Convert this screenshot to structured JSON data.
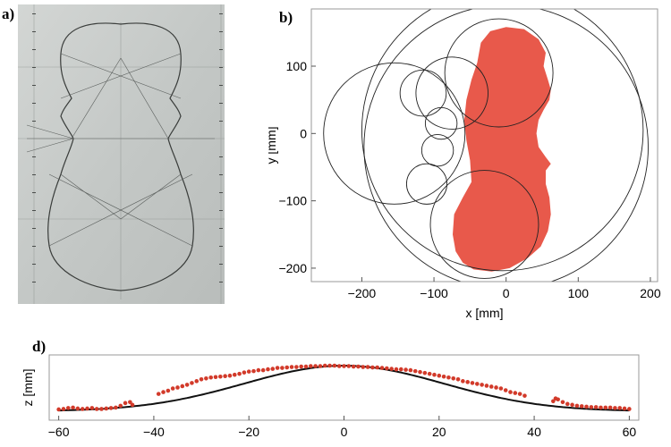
{
  "panels": {
    "a": {
      "label": "a)"
    },
    "b": {
      "label": "b)"
    },
    "d": {
      "label": "d)"
    }
  },
  "colors": {
    "fill": "#e8594b",
    "points": "#d23a2a",
    "curve": "#111111",
    "frame": "#9a9a9a",
    "photo_bg": "#c9ccca"
  },
  "chart_data": [
    {
      "type": "area",
      "panel": "b",
      "xlabel": "x [mm]",
      "ylabel": "y [mm]",
      "xlim": [
        -270,
        210
      ],
      "ylim": [
        -220,
        185
      ],
      "xticks": [
        -200,
        -100,
        0,
        100,
        200
      ],
      "xtick_labels": [
        "−200",
        "−100",
        "0",
        "100",
        "200"
      ],
      "yticks": [
        -200,
        -100,
        0,
        100
      ],
      "ytick_labels": [
        "−200",
        "−100",
        "0",
        "100"
      ],
      "outline": [
        [
          -40,
          105
        ],
        [
          -35,
          135
        ],
        [
          -22,
          152
        ],
        [
          0,
          158
        ],
        [
          25,
          155
        ],
        [
          45,
          140
        ],
        [
          55,
          120
        ],
        [
          52,
          100
        ],
        [
          58,
          80
        ],
        [
          62,
          65
        ],
        [
          60,
          50
        ],
        [
          52,
          35
        ],
        [
          45,
          20
        ],
        [
          42,
          0
        ],
        [
          45,
          -20
        ],
        [
          55,
          -35
        ],
        [
          62,
          -45
        ],
        [
          55,
          -55
        ],
        [
          55,
          -75
        ],
        [
          60,
          -95
        ],
        [
          62,
          -120
        ],
        [
          58,
          -145
        ],
        [
          48,
          -168
        ],
        [
          30,
          -185
        ],
        [
          5,
          -200
        ],
        [
          -20,
          -205
        ],
        [
          -45,
          -202
        ],
        [
          -60,
          -192
        ],
        [
          -70,
          -175
        ],
        [
          -74,
          -150
        ],
        [
          -72,
          -120
        ],
        [
          -60,
          -95
        ],
        [
          -48,
          -72
        ],
        [
          -50,
          -40
        ],
        [
          -55,
          -10
        ],
        [
          -58,
          20
        ],
        [
          -55,
          50
        ],
        [
          -48,
          80
        ],
        [
          -40,
          105
        ]
      ],
      "circles": [
        {
          "cx": 0,
          "cy": -20,
          "r": 197
        },
        {
          "cx": -5,
          "cy": 5,
          "r": 195
        },
        {
          "cx": -155,
          "cy": 0,
          "r": 98
        },
        {
          "cx": -10,
          "cy": 90,
          "r": 75
        },
        {
          "cx": -30,
          "cy": -135,
          "r": 75
        },
        {
          "cx": -75,
          "cy": 60,
          "r": 50
        },
        {
          "cx": -115,
          "cy": 60,
          "r": 32
        },
        {
          "cx": -90,
          "cy": 15,
          "r": 22
        },
        {
          "cx": -95,
          "cy": -25,
          "r": 22
        },
        {
          "cx": -110,
          "cy": -75,
          "r": 28
        }
      ]
    },
    {
      "type": "scatter",
      "panel": "d",
      "ylabel": "z [mm]",
      "xlim": [
        -62,
        62
      ],
      "xticks": [
        -60,
        -40,
        -20,
        0,
        20,
        40,
        60
      ],
      "xtick_labels": [
        "−60",
        "−40",
        "−20",
        "0",
        "20",
        "40",
        "60"
      ],
      "fit_curve": {
        "type": "gaussian",
        "amplitude": 1,
        "sigma": 21
      },
      "points": [
        [
          -60,
          0.04
        ],
        [
          -59,
          0.05
        ],
        [
          -58,
          0.07
        ],
        [
          -57,
          0.08
        ],
        [
          -56,
          0.06
        ],
        [
          -55,
          0.05
        ],
        [
          -54,
          0.06
        ],
        [
          -53,
          0.07
        ],
        [
          -52,
          0.05
        ],
        [
          -51,
          0.05
        ],
        [
          -50,
          0.06
        ],
        [
          -49,
          0.07
        ],
        [
          -48,
          0.08
        ],
        [
          -47,
          0.12
        ],
        [
          -46,
          0.18
        ],
        [
          -45,
          0.2
        ],
        [
          -44.5,
          0.14
        ],
        [
          -39,
          0.38
        ],
        [
          -38,
          0.42
        ],
        [
          -37,
          0.45
        ],
        [
          -36,
          0.5
        ],
        [
          -35,
          0.52
        ],
        [
          -34,
          0.55
        ],
        [
          -33,
          0.58
        ],
        [
          -32,
          0.62
        ],
        [
          -31,
          0.66
        ],
        [
          -30,
          0.7
        ],
        [
          -29,
          0.72
        ],
        [
          -28,
          0.74
        ],
        [
          -27,
          0.75
        ],
        [
          -26,
          0.76
        ],
        [
          -25,
          0.77
        ],
        [
          -24,
          0.78
        ],
        [
          -23,
          0.8
        ],
        [
          -22,
          0.82
        ],
        [
          -21,
          0.85
        ],
        [
          -20,
          0.87
        ],
        [
          -19,
          0.88
        ],
        [
          -18,
          0.9
        ],
        [
          -17,
          0.9
        ],
        [
          -16,
          0.92
        ],
        [
          -15,
          0.93
        ],
        [
          -14,
          0.95
        ],
        [
          -13,
          0.95
        ],
        [
          -12,
          0.96
        ],
        [
          -11,
          0.97
        ],
        [
          -10,
          0.97
        ],
        [
          -9,
          0.98
        ],
        [
          -8,
          0.98
        ],
        [
          -7,
          0.99
        ],
        [
          -6,
          0.99
        ],
        [
          -5,
          0.99
        ],
        [
          -4,
          1
        ],
        [
          -3,
          1
        ],
        [
          -2,
          1
        ],
        [
          -1,
          0.99
        ],
        [
          0,
          0.99
        ],
        [
          1,
          0.99
        ],
        [
          2,
          0.98
        ],
        [
          3,
          0.98
        ],
        [
          4,
          0.97
        ],
        [
          5,
          0.97
        ],
        [
          6,
          0.96
        ],
        [
          7,
          0.96
        ],
        [
          8,
          0.95
        ],
        [
          9,
          0.94
        ],
        [
          10,
          0.93
        ],
        [
          11,
          0.92
        ],
        [
          12,
          0.92
        ],
        [
          13,
          0.91
        ],
        [
          14,
          0.9
        ],
        [
          15,
          0.88
        ],
        [
          16,
          0.86
        ],
        [
          17,
          0.84
        ],
        [
          18,
          0.82
        ],
        [
          19,
          0.8
        ],
        [
          20,
          0.78
        ],
        [
          21,
          0.76
        ],
        [
          22,
          0.74
        ],
        [
          23,
          0.72
        ],
        [
          24,
          0.7
        ],
        [
          25,
          0.66
        ],
        [
          26,
          0.64
        ],
        [
          27,
          0.62
        ],
        [
          28,
          0.6
        ],
        [
          29,
          0.58
        ],
        [
          30,
          0.56
        ],
        [
          31,
          0.54
        ],
        [
          32,
          0.52
        ],
        [
          33,
          0.5
        ],
        [
          34,
          0.46
        ],
        [
          35,
          0.42
        ],
        [
          36,
          0.4
        ],
        [
          37,
          0.38
        ],
        [
          38,
          0.34
        ],
        [
          44,
          0.22
        ],
        [
          44.5,
          0.28
        ],
        [
          45,
          0.26
        ],
        [
          46,
          0.2
        ],
        [
          47,
          0.16
        ],
        [
          48,
          0.14
        ],
        [
          49,
          0.12
        ],
        [
          50,
          0.11
        ],
        [
          51,
          0.1
        ],
        [
          52,
          0.09
        ],
        [
          53,
          0.09
        ],
        [
          54,
          0.08
        ],
        [
          55,
          0.08
        ],
        [
          56,
          0.08
        ],
        [
          57,
          0.07
        ],
        [
          58,
          0.07
        ],
        [
          59,
          0.06
        ],
        [
          60,
          0.05
        ]
      ]
    }
  ]
}
